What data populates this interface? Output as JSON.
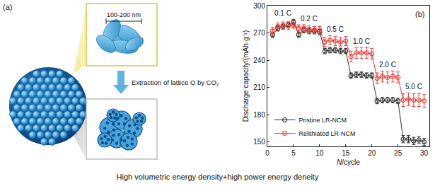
{
  "panels": {
    "a": "(a)",
    "b": "(b)"
  },
  "diagram": {
    "scale_label": "100-200 nm",
    "arrow_label": "Extraction of lattice O by CO₂"
  },
  "caption": "High volumetric energy density+high power energy deneity",
  "chart_data": {
    "type": "line",
    "x_label": "N/cycle",
    "y_label": "Discharge capacity/(mAh·g⁻¹)",
    "x": [
      1,
      2,
      3,
      4,
      5,
      6,
      7,
      8,
      9,
      10,
      11,
      12,
      13,
      14,
      15,
      16,
      17,
      18,
      19,
      20,
      21,
      22,
      23,
      24,
      25,
      26,
      27,
      28,
      29,
      30
    ],
    "xlim": [
      0,
      31
    ],
    "xticks": [
      0,
      5,
      10,
      15,
      20,
      25,
      30
    ],
    "ylim": [
      145,
      300
    ],
    "yticks": [
      150,
      180,
      210,
      240,
      270,
      300
    ],
    "grid": false,
    "legend": "lower left",
    "annotations": [
      "0.1 C",
      "0.2 C",
      "0.5 C",
      "1.0 C",
      "2.0 C",
      "5.0 C"
    ],
    "series": [
      {
        "name": "Pristine LR-NCM",
        "color": "#333333",
        "marker": "open circle",
        "line_style": "solid",
        "values": [
          268,
          275,
          277,
          279,
          282,
          268,
          273,
          272,
          272,
          271,
          250,
          251,
          251,
          250,
          250,
          223,
          224,
          224,
          223,
          223,
          195,
          196,
          196,
          196,
          195,
          153,
          153,
          151,
          152,
          150
        ],
        "error": [
          3,
          3,
          3,
          3,
          3,
          3,
          3,
          3,
          3,
          3,
          3,
          3,
          3,
          3,
          3,
          3,
          3,
          3,
          3,
          3,
          3,
          3,
          3,
          3,
          3,
          4,
          4,
          4,
          4,
          4
        ]
      },
      {
        "name": "Relithiated LR-NCM",
        "color": "#e8403a",
        "marker": "open circle",
        "line_style": "solid",
        "values": [
          272,
          277,
          278,
          278,
          279,
          275,
          275,
          274,
          273,
          273,
          260,
          262,
          261,
          260,
          261,
          244,
          248,
          248,
          248,
          247,
          220,
          222,
          221,
          222,
          221,
          196,
          197,
          196,
          196,
          195
        ],
        "error": [
          4,
          4,
          4,
          4,
          4,
          4,
          4,
          4,
          4,
          4,
          5,
          5,
          5,
          5,
          5,
          6,
          6,
          6,
          6,
          6,
          6,
          6,
          6,
          6,
          6,
          7,
          7,
          7,
          7,
          7
        ]
      }
    ]
  }
}
